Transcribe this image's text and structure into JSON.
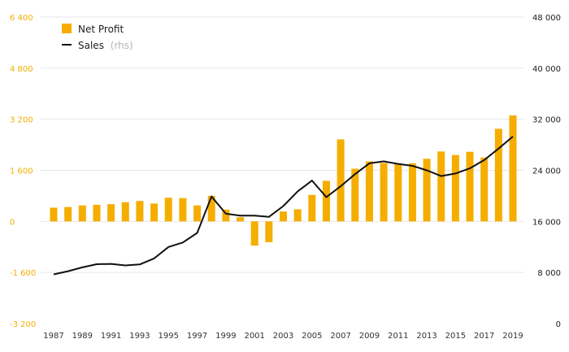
{
  "chart_data": {
    "type": "bar+line",
    "x": [
      1987,
      1988,
      1989,
      1990,
      1991,
      1992,
      1993,
      1994,
      1995,
      1996,
      1997,
      1998,
      1999,
      2000,
      2001,
      2002,
      2003,
      2004,
      2005,
      2006,
      2007,
      2008,
      2009,
      2010,
      2011,
      2012,
      2013,
      2014,
      2015,
      2016,
      2017,
      2018,
      2019
    ],
    "x_tick_labels": [
      "1987",
      "1989",
      "1991",
      "1993",
      "1995",
      "1997",
      "1999",
      "2001",
      "2003",
      "2005",
      "2007",
      "2009",
      "2011",
      "2013",
      "2015",
      "2017",
      "2019"
    ],
    "y_left": {
      "ticks": [
        -3200,
        -1600,
        0,
        1600,
        3200,
        4800,
        6400
      ],
      "tick_labels": [
        "-3 200",
        "-1 600",
        "0",
        "1 600",
        "3 200",
        "4 800",
        "6 400"
      ],
      "range": [
        -3200,
        6400
      ]
    },
    "y_right": {
      "ticks": [
        0,
        8000,
        16000,
        24000,
        32000,
        40000,
        48000
      ],
      "tick_labels": [
        "0",
        "8 000",
        "16 000",
        "24 000",
        "32 000",
        "40 000",
        "48 000"
      ],
      "range": [
        0,
        48000
      ]
    },
    "series": [
      {
        "name": "Net Profit",
        "kind": "bar",
        "axis": "left",
        "color": "#f5ad00",
        "values": [
          430,
          450,
          500,
          520,
          540,
          600,
          640,
          560,
          740,
          730,
          500,
          800,
          370,
          130,
          -760,
          -650,
          310,
          380,
          830,
          1270,
          2570,
          1650,
          1880,
          1830,
          1800,
          1820,
          1960,
          2190,
          2080,
          2180,
          2000,
          2900,
          3320
        ]
      },
      {
        "name": "Sales",
        "name_suffix": "(rhs)",
        "kind": "line",
        "axis": "right",
        "color": "#111111",
        "values": [
          7700,
          8200,
          8800,
          9300,
          9350,
          9100,
          9250,
          10200,
          12000,
          12700,
          14200,
          19900,
          17200,
          16900,
          16900,
          16700,
          18400,
          20700,
          22400,
          19800,
          21500,
          23400,
          25100,
          25400,
          25000,
          24700,
          24000,
          23100,
          23500,
          24300,
          25600,
          27400,
          29300
        ]
      }
    ],
    "grid": true,
    "legend_position": "top-left"
  }
}
